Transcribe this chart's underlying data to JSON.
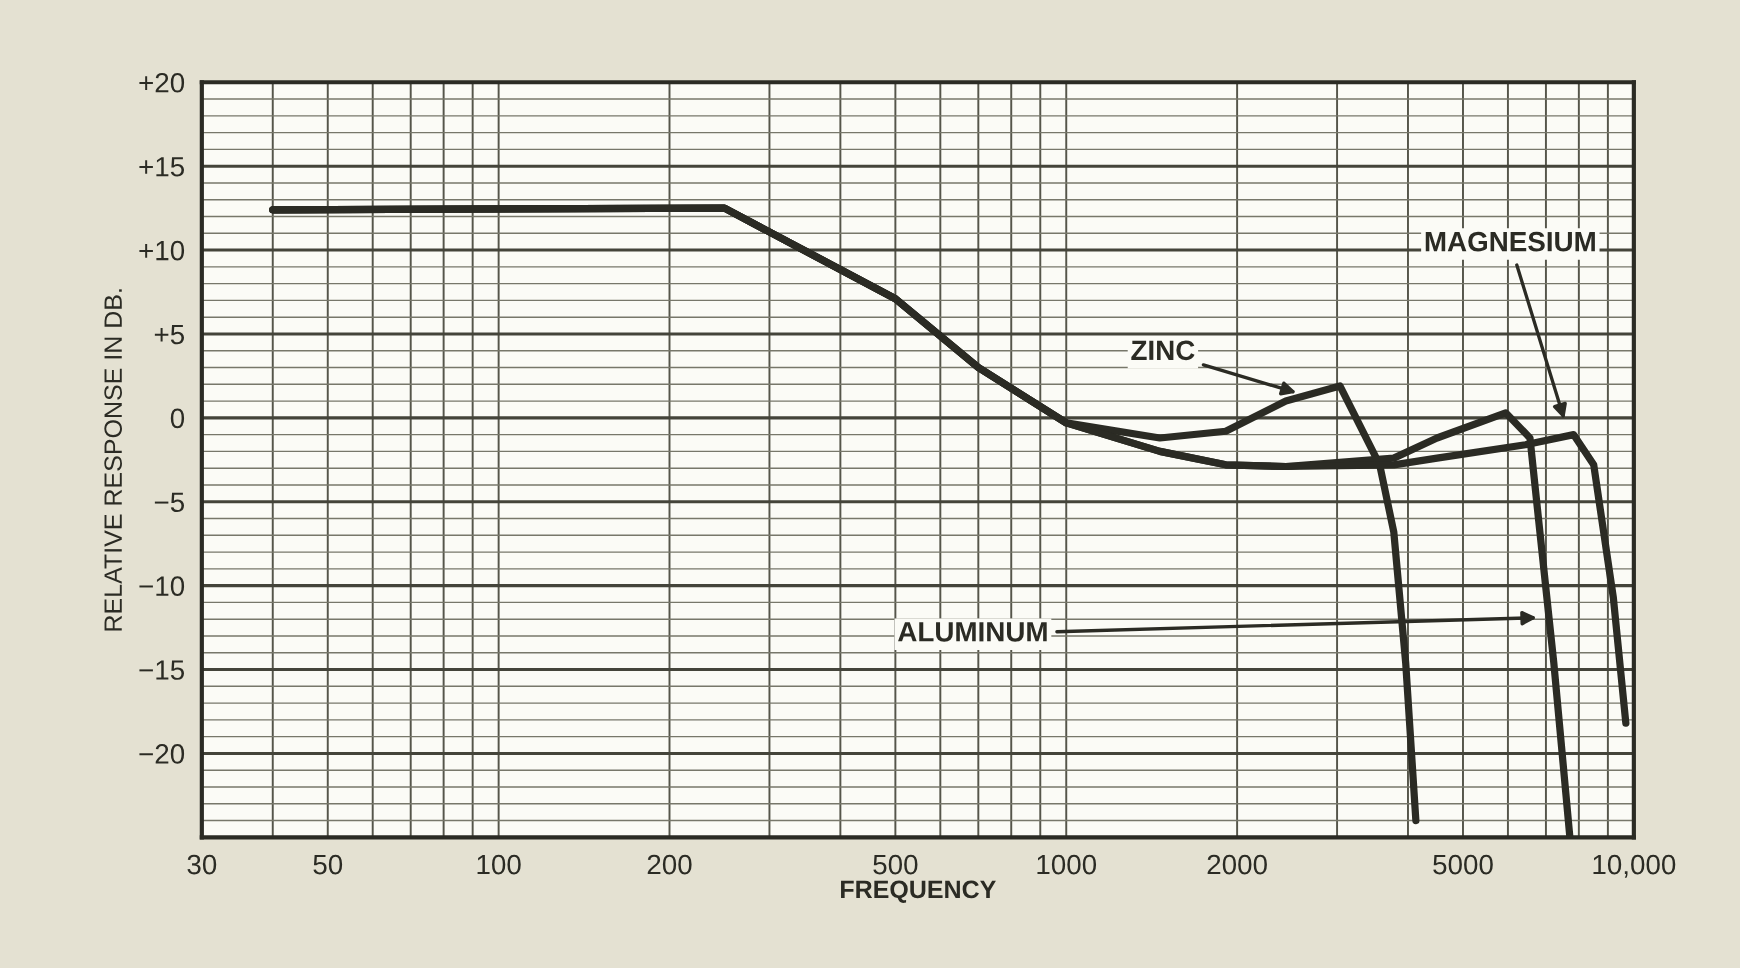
{
  "chart_data": {
    "type": "line",
    "xlabel": "FREQUENCY",
    "ylabel": "RELATIVE RESPONSE IN DB.",
    "log": "x",
    "grid": true,
    "marker": "none",
    "line_style": "solid",
    "xlim": [
      30,
      10000
    ],
    "ylim": [
      -25,
      20
    ],
    "xticks": [
      30,
      50,
      100,
      200,
      500,
      1000,
      2000,
      5000,
      {
        "value": 10000,
        "label": "10,000"
      }
    ],
    "yticks": [
      {
        "value": 20,
        "label": "+20"
      },
      {
        "value": 15,
        "label": "+15"
      },
      {
        "value": 10,
        "label": "+10"
      },
      {
        "value": 5,
        "label": "+5"
      },
      0,
      {
        "value": -5,
        "label": "−5"
      },
      {
        "value": -10,
        "label": "−10"
      },
      {
        "value": -15,
        "label": "−15"
      },
      {
        "value": -20,
        "label": "−20"
      }
    ],
    "series": [
      {
        "color": "#2b2b24",
        "x": [
          40,
          250,
          500,
          700,
          1000,
          1462,
          1910,
          2437,
          3035,
          3566,
          3776,
          3963,
          4130
        ],
        "values": [
          12.4,
          12.5,
          7.1,
          3,
          -0.3,
          -1.2,
          -0.8,
          1,
          1.9,
          -2.8,
          -6.8,
          -14.6,
          -24
        ]
      },
      {
        "color": "#2b2b24",
        "x": [
          40,
          250,
          500,
          700,
          1000,
          1462,
          1910,
          2437,
          3776,
          4500,
          5945,
          6561,
          6830,
          7227,
          7714
        ],
        "values": [
          12.4,
          12.5,
          7.1,
          3,
          -0.3,
          -2,
          -2.8,
          -2.9,
          -2.4,
          -1.2,
          0.3,
          -1.2,
          -6.8,
          -14.6,
          -25
        ]
      },
      {
        "color": "#2b2b24",
        "x": [
          40,
          250,
          500,
          700,
          1000,
          1462,
          1910,
          2437,
          3776,
          4500,
          6442,
          7834,
          8497,
          9200,
          9680
        ],
        "values": [
          12.4,
          12.5,
          7.1,
          3,
          -0.3,
          -2,
          -2.8,
          -2.9,
          -2.8,
          -2.4,
          -1.6,
          -1,
          -2.8,
          -10.7,
          -18.2
        ]
      }
    ],
    "annotations": [
      {
        "text": "ZINC",
        "x": 2600,
        "y": 1.4
      },
      {
        "text": "MAGNESIUM",
        "x": 7590,
        "y": -0.4
      },
      {
        "text": "ALUMINUM",
        "x": 6900,
        "y": -11.9
      }
    ]
  }
}
